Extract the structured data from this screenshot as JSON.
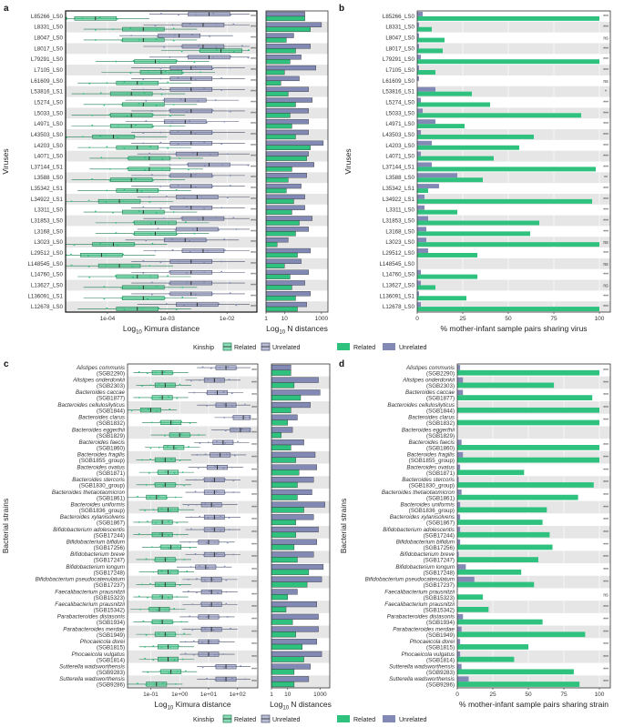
{
  "colors": {
    "related": "#2ec27e",
    "unrelated": "#8189b4",
    "related_dark": "#1f7a4f",
    "unrelated_dark": "#4a4f6b",
    "band": "#e6e6e6"
  },
  "panels": {
    "a": "a",
    "b": "b",
    "c": "c",
    "d": "d"
  },
  "legend": {
    "title": "Kinship",
    "related": "Related",
    "unrelated": "Unrelated"
  },
  "chart_data": [
    {
      "panel": "a",
      "type": "box",
      "ylabel": "Viruses",
      "xlabel": "Log10 Kimura distance",
      "xlabel_base": "Log",
      "xlabel_sub": "10",
      "xlabel_rest": " Kimura distance",
      "xticks": [
        "1e-04",
        "1e-03",
        "1e-02"
      ],
      "categories": [
        "L85266_LS0",
        "L8331_LS0",
        "L8047_LS0",
        "L8017_LS0",
        "L79291_LS0",
        "L7105_LS0",
        "L61609_LS0",
        "L53816_LS1",
        "L5274_LS0",
        "L5033_LS0",
        "L4971_LS0",
        "L43503_LS0",
        "L4203_LS0",
        "L4071_LS0",
        "L37144_LS1",
        "L3588_LS0",
        "L35342_LS1",
        "L34922_LS1",
        "L3311_LS0",
        "L31853_LS0",
        "L3168_LS0",
        "L3023_LS0",
        "L29512_LS0",
        "L148545_LS0",
        "L14760_LS0",
        "L13627_LS0",
        "L136091_LS1",
        "L12678_LS0"
      ],
      "related_median_log": [
        -4.2,
        -3.4,
        -3.4,
        -2.1,
        -3.2,
        -3.1,
        -3.5,
        -3.6,
        -3.4,
        -3.6,
        -3.6,
        -3.9,
        -3.5,
        -3.3,
        -3.3,
        -3.6,
        -3.5,
        -3.8,
        -3.4,
        -3.2,
        -3.2,
        -3.9,
        -4.1,
        -3.8,
        -3.5,
        -3.4,
        -3.4,
        -3.5
      ],
      "unrelated_median_log": [
        -2.3,
        -2.4,
        -2.8,
        -2.4,
        -2.3,
        -2.6,
        -2.6,
        -2.6,
        -2.7,
        -2.6,
        -2.7,
        -2.6,
        -2.6,
        -2.5,
        -2.3,
        -2.6,
        -2.6,
        -2.5,
        -2.6,
        -2.4,
        -2.5,
        -2.7,
        -2.4,
        -2.6,
        -2.6,
        -2.6,
        -2.6,
        -2.5
      ],
      "significance": [
        "***",
        "***",
        "***",
        "***",
        "***",
        "***",
        "***",
        "***",
        "***",
        "***",
        "***",
        "***",
        "***",
        "***",
        "***",
        "***",
        "***",
        "***",
        "***",
        "***",
        "***",
        "***",
        "***",
        "***",
        "***",
        "***",
        "***",
        "***"
      ]
    },
    {
      "panel": "a_counts",
      "type": "bar",
      "xlabel": "Log10 N distances",
      "xlabel_base": "Log",
      "xlabel_sub": "10",
      "xlabel_rest": " N distances",
      "xticks": [
        "1",
        "10",
        "1000"
      ],
      "related_log_n": [
        2.1,
        2.4,
        1.1,
        1.6,
        1.3,
        1.0,
        0.8,
        1.2,
        1.6,
        1.3,
        1.4,
        1.6,
        2.4,
        2.2,
        1.4,
        1.2,
        1.1,
        1.5,
        1.4,
        1.8,
        1.6,
        0.6,
        1.7,
        1.0,
        1.3,
        1.4,
        1.6,
        1.7
      ],
      "unrelated_log_n": [
        2.1,
        3.0,
        1.5,
        2.4,
        1.9,
        2.7,
        1.8,
        2.3,
        2.5,
        2.3,
        2.3,
        2.3,
        3.1,
        2.3,
        2.6,
        2.2,
        1.9,
        2.1,
        2.1,
        2.5,
        2.3,
        1.2,
        2.4,
        1.9,
        2.3,
        2.1,
        2.4,
        2.2
      ]
    },
    {
      "panel": "b",
      "type": "bar",
      "ylabel": "Viruses",
      "xlabel": "% mother-infant sample pairs sharing virus",
      "xticks": [
        "0",
        "25",
        "50",
        "75",
        "100"
      ],
      "related_pct": [
        100,
        8,
        15,
        14,
        100,
        10,
        0,
        30,
        40,
        90,
        26,
        64,
        56,
        42,
        98,
        36,
        6,
        96,
        22,
        67,
        62,
        100,
        33,
        0,
        33,
        10,
        27,
        100
      ],
      "unrelated_pct": [
        3,
        1,
        1,
        1,
        2,
        1,
        1,
        10,
        2,
        3,
        10,
        2,
        8,
        2,
        8,
        22,
        12,
        4,
        4,
        6,
        5,
        5,
        6,
        0,
        2,
        2,
        1,
        2
      ],
      "significance": [
        "***",
        "***",
        "ns",
        "***",
        "***",
        "***",
        "ns",
        "*",
        "***",
        "***",
        "***",
        "***",
        "***",
        "***",
        "***",
        "**",
        "***",
        "***",
        "***",
        "***",
        "***",
        "ns",
        "***",
        "ns",
        "***",
        "ns",
        "***",
        "***"
      ]
    },
    {
      "panel": "c",
      "type": "box",
      "ylabel": "Bacterial strains",
      "xlabel": "Log10 Kimura distance",
      "xlabel_base": "Log",
      "xlabel_sub": "10",
      "xlabel_rest": " Kimura distance",
      "xticks": [
        "1e-01",
        "1e+00",
        "1e+01",
        "1e+02"
      ],
      "species": [
        "Alistipes communis",
        "Alistipes onderdonkii",
        "Bacteroides caccae",
        "Bacteroides cellulosilyticus",
        "Bacteroides clarus",
        "Bacteroides eggerthii",
        "Bacteroides faecis",
        "Bacteroides fragilis",
        "Bacteroides ovatus",
        "Bacteroides stercoris",
        "Bacteroides thetaiotaomicron",
        "Bacteroides uniformis",
        "Bacteroides xylanisolvens",
        "Bifidobacterium adolescentis",
        "Bifidobacterium bifidum",
        "Bifidobacterium breve",
        "Bifidobacterium longum",
        "Bifidobacterium pseudocatenulatum",
        "Faecalibacterium prausnitzii",
        "Faecalibacterium prausnitzii",
        "Parabacteroides distasonis",
        "Parabacteroides merdae",
        "Phocaeicola dorei",
        "Phocaeicola vulgatus",
        "Sutterella wadsworthensis",
        "Sutterella wadsworthensis"
      ],
      "sgb": [
        "(SGB2290)",
        "(SGB2303)",
        "(SGB1877)",
        "(SGB1844)",
        "(SGB1832)",
        "(SGB1829)",
        "(SGB1860)",
        "(SGB1855_group)",
        "(SGB1871)",
        "(SGB1830_group)",
        "(SGB1861)",
        "(SGB1836_group)",
        "(SGB1867)",
        "(SGB17244)",
        "(SGB17256)",
        "(SGB17247)",
        "(SGB17248)",
        "(SGB17237)",
        "(SGB15323)",
        "(SGB15342)",
        "(SGB1934)",
        "(SGB1949)",
        "(SGB1815)",
        "(SGB1814)",
        "(SGB9283)",
        "(SGB9286)"
      ],
      "related_median_log": [
        -0.6,
        -0.5,
        -0.6,
        -1.0,
        -0.3,
        0.0,
        -0.2,
        -0.5,
        -0.4,
        -0.5,
        -0.8,
        -0.4,
        -0.6,
        -0.6,
        -0.3,
        -0.5,
        -0.4,
        -0.5,
        -0.6,
        -0.7,
        -0.6,
        -0.5,
        -0.4,
        -0.4,
        -0.3,
        -0.8
      ],
      "unrelated_median_log": [
        1.6,
        1.2,
        1.3,
        1.6,
        2.2,
        2.1,
        1.5,
        1.4,
        1.3,
        1.2,
        1.2,
        1.1,
        1.2,
        1.2,
        1.0,
        1.2,
        0.9,
        1.1,
        1.1,
        1.1,
        1.0,
        1.1,
        1.0,
        1.0,
        1.6,
        1.6
      ],
      "significance": [
        "***",
        "***",
        "***",
        "***",
        "***",
        "***",
        "***",
        "***",
        "***",
        "***",
        "***",
        "***",
        "***",
        "***",
        "***",
        "***",
        "***",
        "***",
        "***",
        "***",
        "***",
        "***",
        "***",
        "***",
        "***",
        "***"
      ]
    },
    {
      "panel": "c_counts",
      "type": "bar",
      "xlabel": "Log10 N distances",
      "xlabel_base": "Log",
      "xlabel_sub": "10",
      "xlabel_rest": " N distances",
      "xticks": [
        "1",
        "10",
        "1000"
      ],
      "related_log_n": [
        1.2,
        1.4,
        1.8,
        1.2,
        1.0,
        0.6,
        1.2,
        1.5,
        1.7,
        1.6,
        1.6,
        2.0,
        1.5,
        1.5,
        1.4,
        1.6,
        2.3,
        2.2,
        1.0,
        0.9,
        1.3,
        1.5,
        1.9,
        2.0,
        1.4,
        1.4
      ],
      "unrelated_log_n": [
        1.2,
        2.9,
        3.0,
        2.4,
        1.6,
        1.3,
        2.0,
        2.7,
        2.8,
        2.6,
        2.5,
        3.3,
        2.6,
        2.9,
        2.8,
        2.6,
        3.2,
        3.1,
        1.6,
        2.8,
        2.9,
        2.9,
        2.8,
        3.1,
        2.4,
        2.3
      ]
    },
    {
      "panel": "d",
      "type": "bar",
      "ylabel": "Bacterial strains",
      "xlabel": "% mother-infant sample pairs sharing strain",
      "xticks": [
        "0",
        "25",
        "50",
        "75",
        "100"
      ],
      "related_pct": [
        100,
        68,
        95,
        100,
        100,
        0,
        100,
        100,
        47,
        96,
        85,
        63,
        60,
        65,
        67,
        57,
        45,
        54,
        18,
        22,
        60,
        90,
        50,
        40,
        82,
        86
      ],
      "unrelated_pct": [
        2,
        4,
        4,
        0,
        0,
        0,
        3,
        4,
        2,
        1,
        3,
        2,
        2,
        2,
        2,
        1,
        6,
        12,
        0,
        0,
        4,
        3,
        2,
        2,
        3,
        8
      ],
      "significance": [
        "***",
        "***",
        "***",
        "***",
        "***",
        "",
        "***",
        "***",
        "***",
        "***",
        "***",
        "***",
        "***",
        "***",
        "***",
        "***",
        "***",
        "***",
        "ns",
        "***",
        "***",
        "***",
        "***",
        "***",
        "***",
        "***"
      ]
    }
  ]
}
